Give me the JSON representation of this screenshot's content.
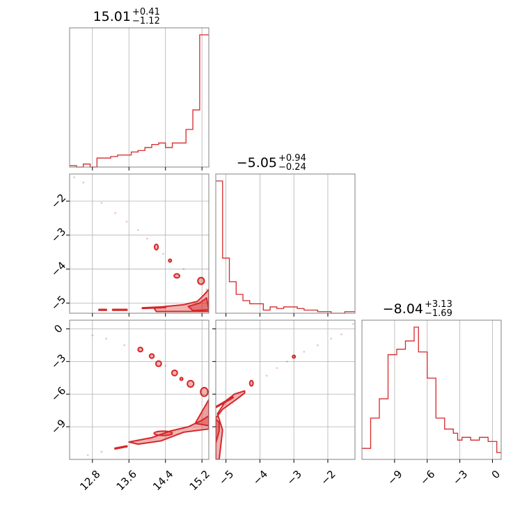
{
  "chart_data": {
    "type": "corner",
    "color": "#d62728",
    "params": [
      {
        "median": "15.01",
        "plus": "+0.41",
        "minus": "−1.12",
        "range": [
          12.3,
          15.35
        ],
        "ticks": [
          12.8,
          13.6,
          14.4,
          15.2
        ],
        "tick_labels": [
          "12.8",
          "13.6",
          "14.4",
          "15.2"
        ]
      },
      {
        "median": "−5.05",
        "plus": "+0.94",
        "minus": "−0.24",
        "range": [
          -5.3,
          -1.2
        ],
        "ticks": [
          -5,
          -4,
          -3,
          -2
        ],
        "tick_labels": [
          "−5",
          "−4",
          "−3",
          "−2"
        ]
      },
      {
        "median": "−8.04",
        "plus": "+3.13",
        "minus": "−1.69",
        "range": [
          -12.0,
          0.8
        ],
        "ticks": [
          -9,
          -6,
          -3,
          0
        ],
        "tick_labels": [
          "−9",
          "−6",
          "−3",
          "0"
        ]
      }
    ],
    "histograms": [
      {
        "param": 0,
        "edges": [
          12.3,
          12.45,
          12.6,
          12.75,
          12.9,
          13.05,
          13.2,
          13.35,
          13.5,
          13.65,
          13.8,
          13.95,
          14.1,
          14.25,
          14.4,
          14.55,
          14.7,
          14.85,
          15.0,
          15.15,
          15.3,
          15.35
        ],
        "counts": [
          0.01,
          0.0,
          0.02,
          0.0,
          0.06,
          0.06,
          0.07,
          0.08,
          0.08,
          0.1,
          0.11,
          0.13,
          0.15,
          0.16,
          0.13,
          0.16,
          0.16,
          0.25,
          0.38,
          0.88,
          0.88
        ]
      },
      {
        "param": 1,
        "edges": [
          -5.3,
          -5.1,
          -4.9,
          -4.7,
          -4.5,
          -4.3,
          -4.1,
          -3.9,
          -3.7,
          -3.5,
          -3.3,
          -3.1,
          -2.9,
          -2.7,
          -2.5,
          -2.3,
          -2.1,
          -1.9,
          -1.7,
          -1.5,
          -1.3,
          -1.2
        ],
        "counts": [
          0.84,
          0.35,
          0.2,
          0.12,
          0.08,
          0.06,
          0.06,
          0.02,
          0.04,
          0.03,
          0.04,
          0.04,
          0.03,
          0.02,
          0.02,
          0.01,
          0.01,
          0.0,
          0.0,
          0.01,
          0.01
        ]
      },
      {
        "param": 2,
        "edges": [
          -12.0,
          -11.6,
          -11.2,
          -10.8,
          -10.4,
          -10.0,
          -9.6,
          -9.2,
          -8.8,
          -8.4,
          -8.0,
          -7.6,
          -7.2,
          -6.8,
          -6.4,
          -6.0,
          -5.6,
          -5.2,
          -4.8,
          -4.4,
          -4.0,
          -3.6,
          -3.2,
          -2.8,
          -2.4,
          -2.0,
          -1.6,
          -1.2,
          -0.8,
          -0.4,
          0.0,
          0.4,
          0.8
        ],
        "counts": [
          0.08,
          0.08,
          0.3,
          0.3,
          0.44,
          0.44,
          0.76,
          0.76,
          0.8,
          0.8,
          0.86,
          0.86,
          0.96,
          0.78,
          0.78,
          0.59,
          0.59,
          0.3,
          0.3,
          0.22,
          0.22,
          0.19,
          0.14,
          0.16,
          0.16,
          0.14,
          0.14,
          0.16,
          0.16,
          0.13,
          0.13,
          0.05
        ]
      }
    ],
    "contours": [
      {
        "x_param": 0,
        "y_param": 1,
        "main": [
          [
            14.15,
            -5.15
          ],
          [
            14.4,
            -5.1
          ],
          [
            14.8,
            -5.05
          ],
          [
            15.1,
            -4.95
          ],
          [
            15.25,
            -4.75
          ],
          [
            15.35,
            -4.6
          ],
          [
            15.35,
            -5.25
          ],
          [
            14.2,
            -5.25
          ]
        ],
        "main_inner": [
          [
            14.9,
            -5.1
          ],
          [
            15.15,
            -5.0
          ],
          [
            15.3,
            -4.85
          ],
          [
            15.35,
            -5.2
          ],
          [
            15.0,
            -5.22
          ]
        ],
        "thin": [
          [
            [
              13.9,
              -5.15
            ],
            [
              14.4,
              -5.12
            ]
          ],
          [
            [
              13.25,
              -5.2
            ],
            [
              13.55,
              -5.2
            ]
          ],
          [
            [
              12.95,
              -5.2
            ],
            [
              13.1,
              -5.2
            ]
          ]
        ],
        "blobs": [
          [
            14.2,
            -3.35,
            0.04,
            0.08
          ],
          [
            14.65,
            -4.2,
            0.06,
            0.06
          ],
          [
            15.18,
            -4.35,
            0.07,
            0.1
          ],
          [
            14.5,
            -3.75,
            0.025,
            0.025
          ]
        ],
        "scatter": [
          [
            12.4,
            -1.3
          ],
          [
            12.6,
            -1.45
          ],
          [
            13.0,
            -2.05
          ],
          [
            13.3,
            -2.35
          ],
          [
            13.55,
            -2.6
          ],
          [
            13.8,
            -2.85
          ],
          [
            14.0,
            -3.1
          ],
          [
            14.35,
            -3.55
          ],
          [
            14.8,
            -4.0
          ],
          [
            15.3,
            -4.6
          ]
        ]
      },
      {
        "x_param": 0,
        "y_param": 2,
        "main": [
          [
            13.6,
            -10.4
          ],
          [
            14.1,
            -10.0
          ],
          [
            14.5,
            -9.4
          ],
          [
            14.9,
            -9.0
          ],
          [
            15.2,
            -8.4
          ],
          [
            15.35,
            -8.0
          ],
          [
            15.35,
            -9.2
          ],
          [
            14.8,
            -9.5
          ],
          [
            14.3,
            -10.3
          ],
          [
            13.8,
            -10.6
          ]
        ],
        "main_inner": [
          [
            15.05,
            -8.7
          ],
          [
            15.35,
            -6.5
          ],
          [
            15.35,
            -8.9
          ]
        ],
        "thin": [
          [
            [
              13.3,
              -11.0
            ],
            [
              13.55,
              -10.8
            ]
          ]
        ],
        "blobs": [
          [
            13.85,
            -1.9,
            0.05,
            0.2
          ],
          [
            14.1,
            -2.5,
            0.05,
            0.2
          ],
          [
            14.25,
            -3.2,
            0.06,
            0.25
          ],
          [
            14.6,
            -4.05,
            0.06,
            0.25
          ],
          [
            14.95,
            -5.05,
            0.07,
            0.3
          ],
          [
            15.25,
            -5.8,
            0.08,
            0.4
          ],
          [
            14.75,
            -4.6,
            0.02,
            0.12
          ],
          [
            14.35,
            -9.6,
            0.2,
            0.2
          ]
        ],
        "scatter": [
          [
            12.7,
            -11.6
          ],
          [
            13.0,
            -11.3
          ],
          [
            12.8,
            -0.6
          ],
          [
            13.1,
            -0.9
          ],
          [
            13.5,
            -1.5
          ],
          [
            14.4,
            -3.4
          ],
          [
            15.3,
            -7.0
          ]
        ]
      },
      {
        "x_param": 1,
        "y_param": 2,
        "main": [
          [
            -5.3,
            -12.0
          ],
          [
            -5.3,
            -8.2
          ],
          [
            -5.1,
            -7.4
          ],
          [
            -4.7,
            -6.5
          ],
          [
            -4.45,
            -5.9
          ],
          [
            -4.45,
            -5.7
          ],
          [
            -4.75,
            -6.0
          ],
          [
            -5.0,
            -6.6
          ],
          [
            -5.25,
            -7.8
          ],
          [
            -5.1,
            -9.3
          ],
          [
            -5.2,
            -12.0
          ]
        ],
        "main_inner": [
          [
            -5.3,
            -10.5
          ],
          [
            -5.2,
            -9.4
          ],
          [
            -5.2,
            -8.6
          ],
          [
            -5.3,
            -8.3
          ]
        ],
        "thin": [
          [
            [
              -5.3,
              -7.2
            ],
            [
              -4.8,
              -6.3
            ]
          ]
        ],
        "blobs": [
          [
            -4.25,
            -5.0,
            0.05,
            0.25
          ],
          [
            -3.0,
            -2.55,
            0.03,
            0.12
          ]
        ],
        "scatter": [
          [
            -3.8,
            -4.3
          ],
          [
            -3.5,
            -3.6
          ],
          [
            -3.2,
            -3.0
          ],
          [
            -2.7,
            -2.1
          ],
          [
            -2.3,
            -1.5
          ],
          [
            -1.9,
            -0.9
          ],
          [
            -1.6,
            -0.5
          ],
          [
            -1.25,
            0.45
          ]
        ]
      }
    ]
  }
}
